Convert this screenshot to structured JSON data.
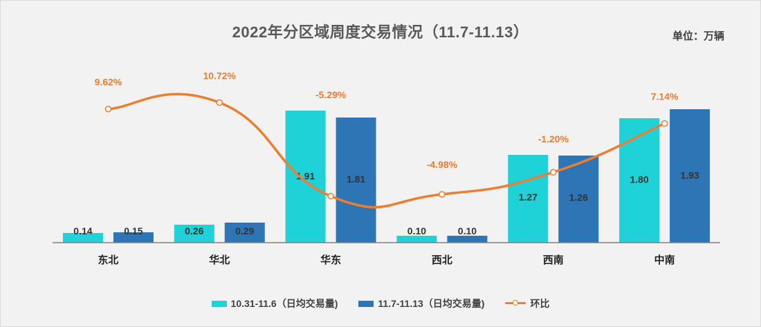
{
  "chart_data": {
    "type": "bar",
    "title": "2022年分区域周度交易情况（11.7-11.13）",
    "unit_label": "单位：万辆",
    "categories": [
      "东北",
      "华北",
      "华东",
      "西北",
      "西南",
      "中南"
    ],
    "series": [
      {
        "name": "10.31-11.6（日均交易量)",
        "values": [
          0.14,
          0.26,
          1.91,
          0.1,
          1.27,
          1.8
        ],
        "value_labels": [
          "0.14",
          "0.26",
          "1.91",
          "0.10",
          "1.27",
          "1.80"
        ],
        "color": "#1ed2d8"
      },
      {
        "name": "11.7-11.13（日均交易量)",
        "values": [
          0.15,
          0.29,
          1.81,
          0.1,
          1.26,
          1.93
        ],
        "value_labels": [
          "0.15",
          "0.29",
          "1.81",
          "0.10",
          "1.26",
          "1.93"
        ],
        "color": "#2e75b6"
      }
    ],
    "line_series": {
      "name": "环比",
      "values": [
        9.62,
        10.72,
        -5.29,
        -4.98,
        -1.2,
        7.14
      ],
      "labels": [
        "9.62%",
        "10.72%",
        "-5.29%",
        "-4.98%",
        "-1.20%",
        "7.14%"
      ],
      "color": "#ed7d31"
    },
    "ylim": [
      0,
      2.5
    ],
    "y2lim": [
      -8,
      16
    ],
    "legend_position": "bottom",
    "grid": false
  }
}
